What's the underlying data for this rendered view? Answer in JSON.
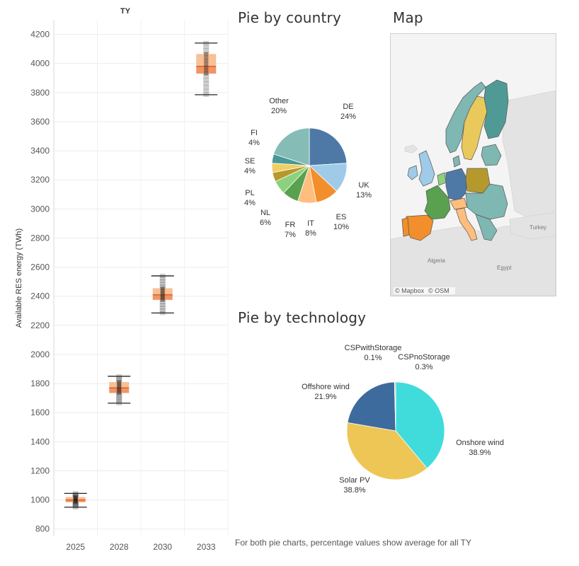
{
  "box_chart": {
    "header": "TY",
    "ylabel": "Available RES energy (TWh)",
    "yticks": [
      800,
      1000,
      1200,
      1400,
      1600,
      1800,
      2000,
      2200,
      2400,
      2600,
      2800,
      3000,
      3200,
      3400,
      3600,
      3800,
      4000,
      4200
    ]
  },
  "pie_country": {
    "title": "Pie by country"
  },
  "pie_technology": {
    "title": "Pie by technology"
  },
  "map": {
    "title": "Map",
    "place_labels": [
      "Turkey",
      "Algeria",
      "Egypt"
    ],
    "attribution": [
      "© Mapbox",
      "© OSM"
    ],
    "colors": {
      "land": "#e3e3e3",
      "sea": "#f4f4f4",
      "teal": "#7fb7b2",
      "dark_teal": "#4f9a94",
      "yellow": "#e9c95b",
      "blue": "#4e79a7",
      "light_blue": "#a0cbe8",
      "green": "#59a14f",
      "orange": "#f28e2b",
      "olive": "#b6992d",
      "peach": "#ffbe7d"
    }
  },
  "footnote": "For both pie charts, percentage values show average for all TY",
  "chart_data": [
    {
      "type": "box",
      "title": "TY",
      "ylabel": "Available RES energy (TWh)",
      "ylim": [
        750,
        4300
      ],
      "grid": true,
      "categories": [
        "2025",
        "2028",
        "2030",
        "2033"
      ],
      "boxes": [
        {
          "category": "2025",
          "whisker_low": 950,
          "q1": 985,
          "median": 1000,
          "q3": 1020,
          "whisker_high": 1045
        },
        {
          "category": "2028",
          "whisker_low": 1665,
          "q1": 1735,
          "median": 1770,
          "q3": 1810,
          "whisker_high": 1850
        },
        {
          "category": "2030",
          "whisker_low": 2285,
          "q1": 2375,
          "median": 2410,
          "q3": 2455,
          "whisker_high": 2540
        },
        {
          "category": "2033",
          "whisker_low": 3785,
          "q1": 3930,
          "median": 3980,
          "q3": 4065,
          "whisker_high": 4140
        }
      ]
    },
    {
      "type": "pie",
      "title": "Pie by country",
      "slices": [
        {
          "label": "DE",
          "value": 24,
          "display": "24%",
          "color": "#4e79a7"
        },
        {
          "label": "UK",
          "value": 13,
          "display": "13%",
          "color": "#a0cbe8"
        },
        {
          "label": "ES",
          "value": 10,
          "display": "10%",
          "color": "#f28e2b"
        },
        {
          "label": "IT",
          "value": 8,
          "display": "8%",
          "color": "#ffbe7d"
        },
        {
          "label": "FR",
          "value": 7,
          "display": "7%",
          "color": "#59a14f"
        },
        {
          "label": "NL",
          "value": 6,
          "display": "6%",
          "color": "#8cd17d"
        },
        {
          "label": "PL",
          "value": 4,
          "display": "4%",
          "color": "#b6992d"
        },
        {
          "label": "SE",
          "value": 4,
          "display": "4%",
          "color": "#f1ce63"
        },
        {
          "label": "FI",
          "value": 4,
          "display": "4%",
          "color": "#499894"
        },
        {
          "label": "Other",
          "value": 20,
          "display": "20%",
          "color": "#86bcb6"
        }
      ]
    },
    {
      "type": "pie",
      "title": "Pie by technology",
      "slices": [
        {
          "label": "Onshore wind",
          "value": 38.9,
          "display": "38.9%",
          "color": "#40dcdc"
        },
        {
          "label": "Solar PV",
          "value": 38.8,
          "display": "38.8%",
          "color": "#edc655"
        },
        {
          "label": "Offshore wind",
          "value": 21.9,
          "display": "21.9%",
          "color": "#3e6b9e"
        },
        {
          "label": "CSPwithStorage",
          "value": 0.1,
          "display": "0.1%",
          "color": "#4a4a4a"
        },
        {
          "label": "CSPnoStorage",
          "value": 0.3,
          "display": "0.3%",
          "color": "#b07a2a"
        }
      ]
    }
  ]
}
